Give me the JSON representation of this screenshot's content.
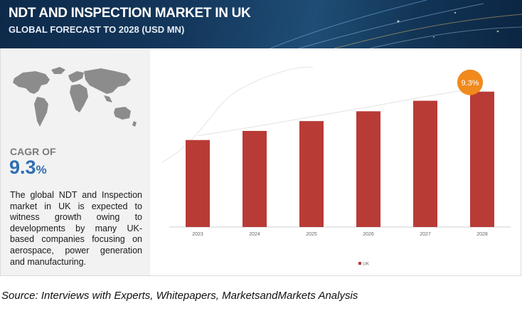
{
  "header": {
    "title": "NDT AND INSPECTION MARKET IN UK",
    "subtitle": "GLOBAL FORECAST TO 2028 (USD MN)"
  },
  "sidebar": {
    "cagr_label": "CAGR OF",
    "cagr_value": "9.3",
    "cagr_unit": "%",
    "description": "The global NDT and Inspection market in UK is expected to witness growth owing to developments by many UK-based companies focusing on aerospace, power generation and manufacturing."
  },
  "chart_data": {
    "type": "bar",
    "categories": [
      "2023",
      "2024",
      "2025",
      "2026",
      "2027",
      "2028"
    ],
    "series": [
      {
        "name": "UK",
        "values": [
          124,
          137,
          151,
          165,
          180,
          193
        ]
      }
    ],
    "ylim": [
      0,
      210
    ],
    "legend": "bottom-center",
    "grid": false,
    "annotation": "9.3%",
    "colors": {
      "bar": "#b83b36",
      "badge": "#f08a1c"
    }
  },
  "footer": {
    "source": "Source: Interviews with Experts, Whitepapers, MarketsandMarkets Analysis"
  }
}
